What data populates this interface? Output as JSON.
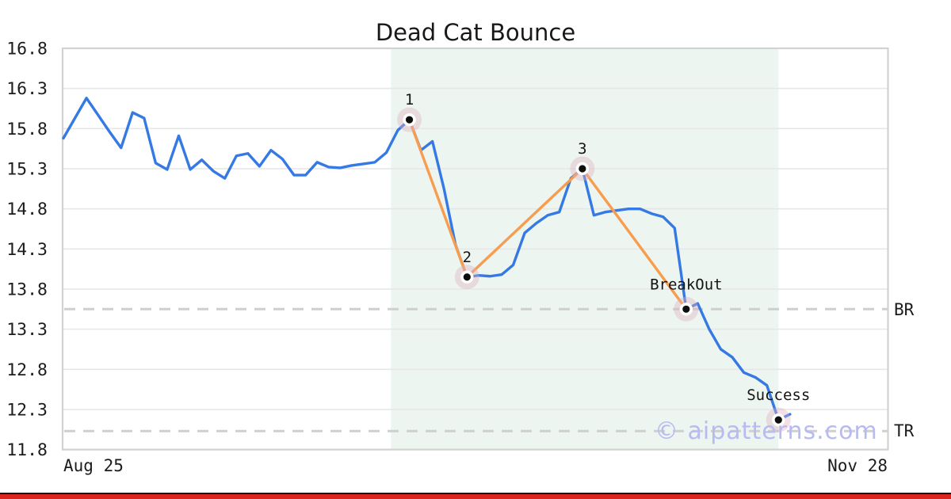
{
  "watermark": "© aipatterns.com",
  "colors": {
    "background": "#ffffff",
    "grid": "#e7e7e7",
    "border": "#d2d2d2",
    "dashed_reference": "#cfcfcf",
    "highlight_region": "#edf5f0",
    "price_line": "#3579e4",
    "pattern_line": "#f89c4e",
    "marker_halo": "#dfb2c0",
    "marker_dot": "#0e0e0e",
    "text": "#1c1c1c",
    "watermark": "#b8bbf2",
    "bottom_rule": "#161616",
    "bottom_bar": "#dc241f"
  },
  "chart_data": {
    "type": "line",
    "title": "Dead Cat Bounce",
    "x_axis": {
      "start_label": "Aug 25",
      "end_label": "Nov 28"
    },
    "y_axis": {
      "min": 11.8,
      "max": 16.8,
      "tick_step": 0.5,
      "ticks": [
        16.8,
        16.3,
        15.8,
        15.3,
        14.8,
        14.3,
        13.8,
        13.3,
        12.8,
        12.3,
        11.8
      ]
    },
    "grid": true,
    "series": [
      {
        "name": "price",
        "color": "#3579e4",
        "values": [
          15.68,
          15.93,
          16.18,
          15.97,
          15.76,
          15.56,
          16.0,
          15.93,
          15.37,
          15.29,
          15.71,
          15.29,
          15.41,
          15.27,
          15.18,
          15.46,
          15.49,
          15.33,
          15.53,
          15.42,
          15.22,
          15.22,
          15.38,
          15.32,
          15.31,
          15.34,
          15.36,
          15.38,
          15.5,
          15.78,
          15.91,
          15.53,
          15.64,
          15.05,
          14.35,
          13.95,
          13.97,
          13.96,
          13.98,
          14.1,
          14.5,
          14.62,
          14.72,
          14.76,
          15.18,
          15.3,
          14.72,
          14.76,
          14.78,
          14.8,
          14.8,
          14.74,
          14.7,
          14.56,
          13.55,
          13.62,
          13.3,
          13.05,
          12.95,
          12.76,
          12.7,
          12.6,
          12.17,
          12.24
        ]
      }
    ],
    "pattern_line": {
      "name": "dead-cat-bounce-pattern",
      "color": "#f89c4e",
      "indices": [
        30,
        35,
        45,
        54
      ]
    },
    "markers": [
      {
        "label": "1",
        "index": 30,
        "value": 15.91
      },
      {
        "label": "2",
        "index": 35,
        "value": 13.95
      },
      {
        "label": "3",
        "index": 45,
        "value": 15.3
      },
      {
        "label": "BreakOut",
        "index": 54,
        "value": 13.55
      },
      {
        "label": "Success",
        "index": 62,
        "value": 12.17
      }
    ],
    "reference_lines": [
      {
        "label": "BR",
        "value": 13.55
      },
      {
        "label": "TR",
        "value": 12.03
      }
    ],
    "highlight_region": {
      "start_index": 28.4,
      "end_index": 62,
      "color": "#edf5f0"
    }
  }
}
